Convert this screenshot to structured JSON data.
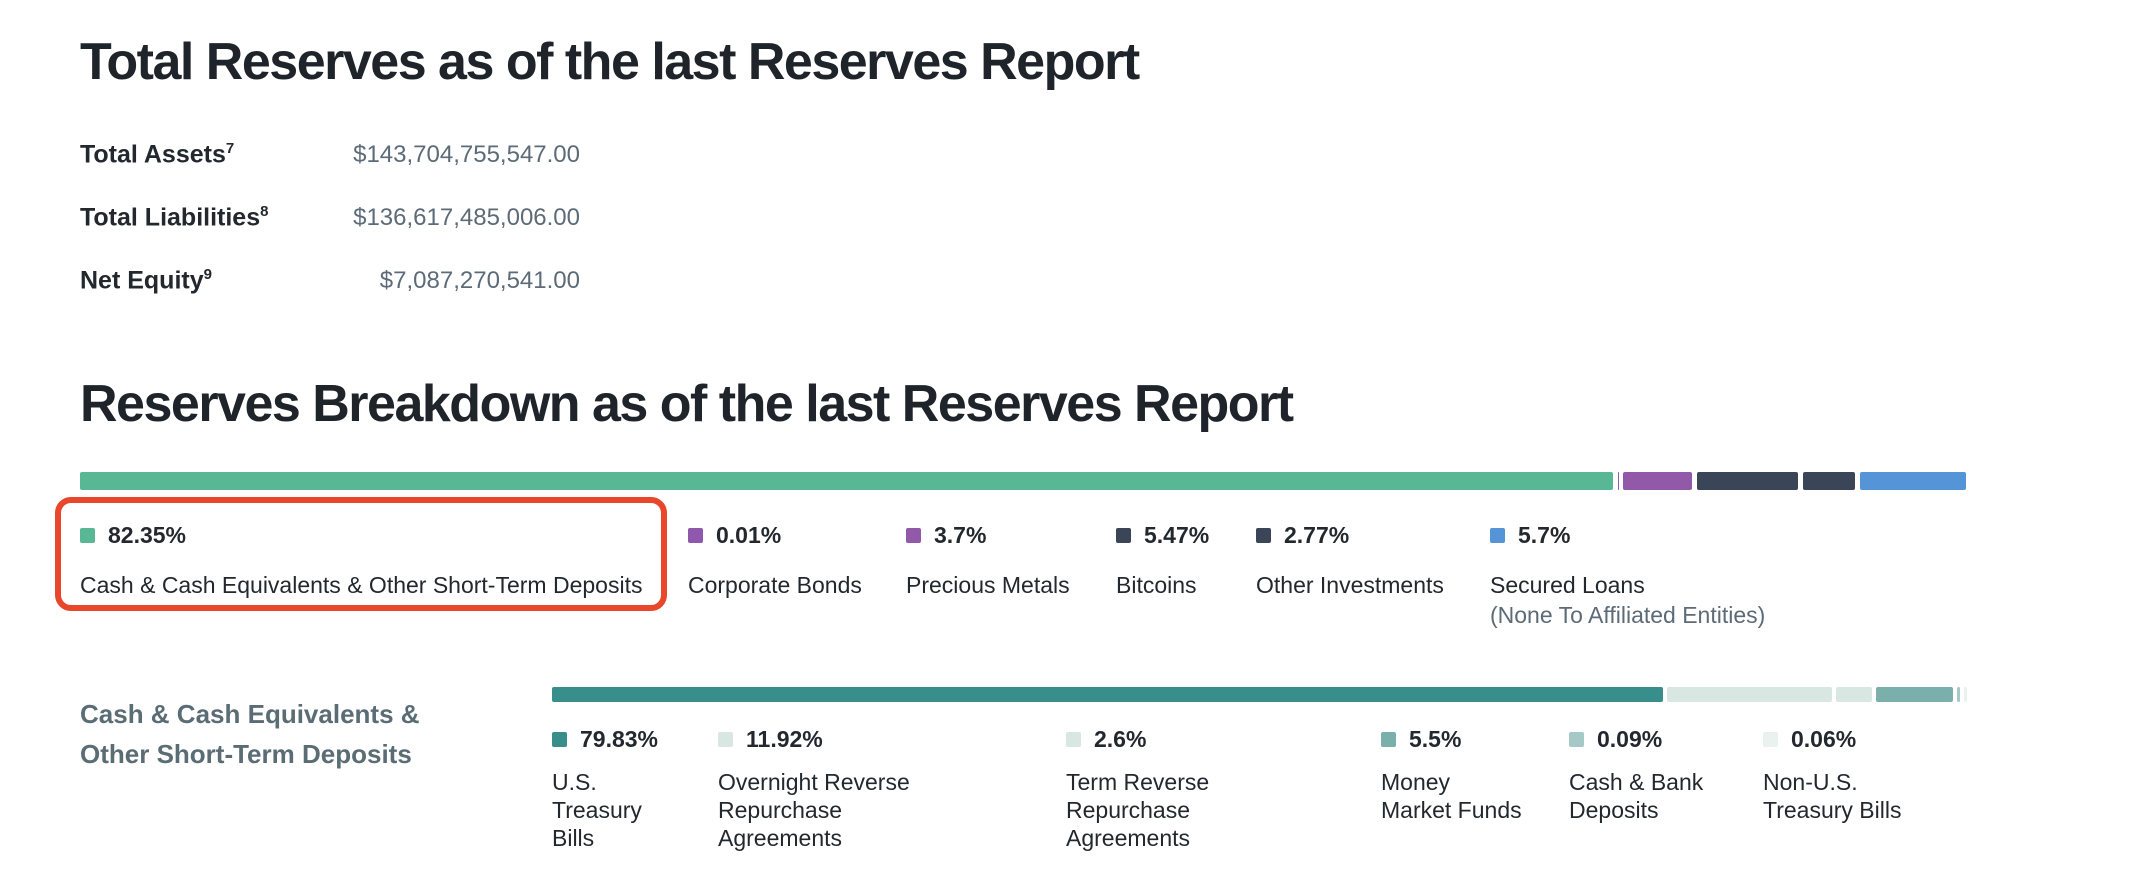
{
  "sections": {
    "total_reserves": {
      "title": "Total Reserves as of the last Reserves Report"
    },
    "breakdown": {
      "title": "Reserves Breakdown as of the last Reserves Report"
    }
  },
  "totals": {
    "rows": [
      {
        "label": "Total Assets",
        "footnote": "7",
        "value": "$143,704,755,547.00"
      },
      {
        "label": "Total Liabilities",
        "footnote": "8",
        "value": "$136,617,485,006.00"
      },
      {
        "label": "Net Equity",
        "footnote": "9",
        "value": "$7,087,270,541.00"
      }
    ]
  },
  "annotation": {
    "highlight_color": "#e8472b",
    "highlighted_item": "Cash & Cash Equivalents & Other Short-Term Deposits"
  },
  "chart_data": [
    {
      "type": "bar",
      "stacked": true,
      "orientation": "horizontal",
      "title": "Reserves Breakdown as of the last Reserves Report",
      "unit": "percent",
      "total": 100,
      "legend_position": "bottom",
      "series": [
        {
          "name": "Cash & Cash Equivalents & Other Short-Term Deposits",
          "value": 82.35,
          "color": "#58b896",
          "highlighted": true
        },
        {
          "name": "Corporate Bonds",
          "value": 0.01,
          "color": "#8f58ac"
        },
        {
          "name": "Precious Metals",
          "value": 3.7,
          "color": "#9159a8"
        },
        {
          "name": "Bitcoins",
          "value": 5.47,
          "color": "#3a4658"
        },
        {
          "name": "Other Investments",
          "value": 2.77,
          "color": "#3a4658"
        },
        {
          "name": "Secured Loans",
          "note": "(None To Affiliated Entities)",
          "value": 5.7,
          "color": "#5594d6"
        }
      ]
    },
    {
      "type": "bar",
      "stacked": true,
      "orientation": "horizontal",
      "title": "Cash & Cash Equivalents &\nOther Short-Term Deposits",
      "unit": "percent",
      "total": 100,
      "legend_position": "bottom",
      "series": [
        {
          "name": "U.S.\nTreasury\nBills",
          "value": 79.83,
          "color": "#388e8b"
        },
        {
          "name": "Overnight Reverse\nRepurchase Agreements",
          "value": 11.92,
          "color": "#d9e7e3"
        },
        {
          "name": "Term Reverse\nRepurchase Agreements",
          "value": 2.6,
          "color": "#d9e7e3"
        },
        {
          "name": "Money\nMarket Funds",
          "value": 5.5,
          "color": "#7aafac"
        },
        {
          "name": "Cash & Bank\nDeposits",
          "value": 0.09,
          "color": "#a5c9c6"
        },
        {
          "name": "Non-U.S.\nTreasury Bills",
          "value": 0.06,
          "color": "#e9f2ef"
        }
      ]
    }
  ]
}
